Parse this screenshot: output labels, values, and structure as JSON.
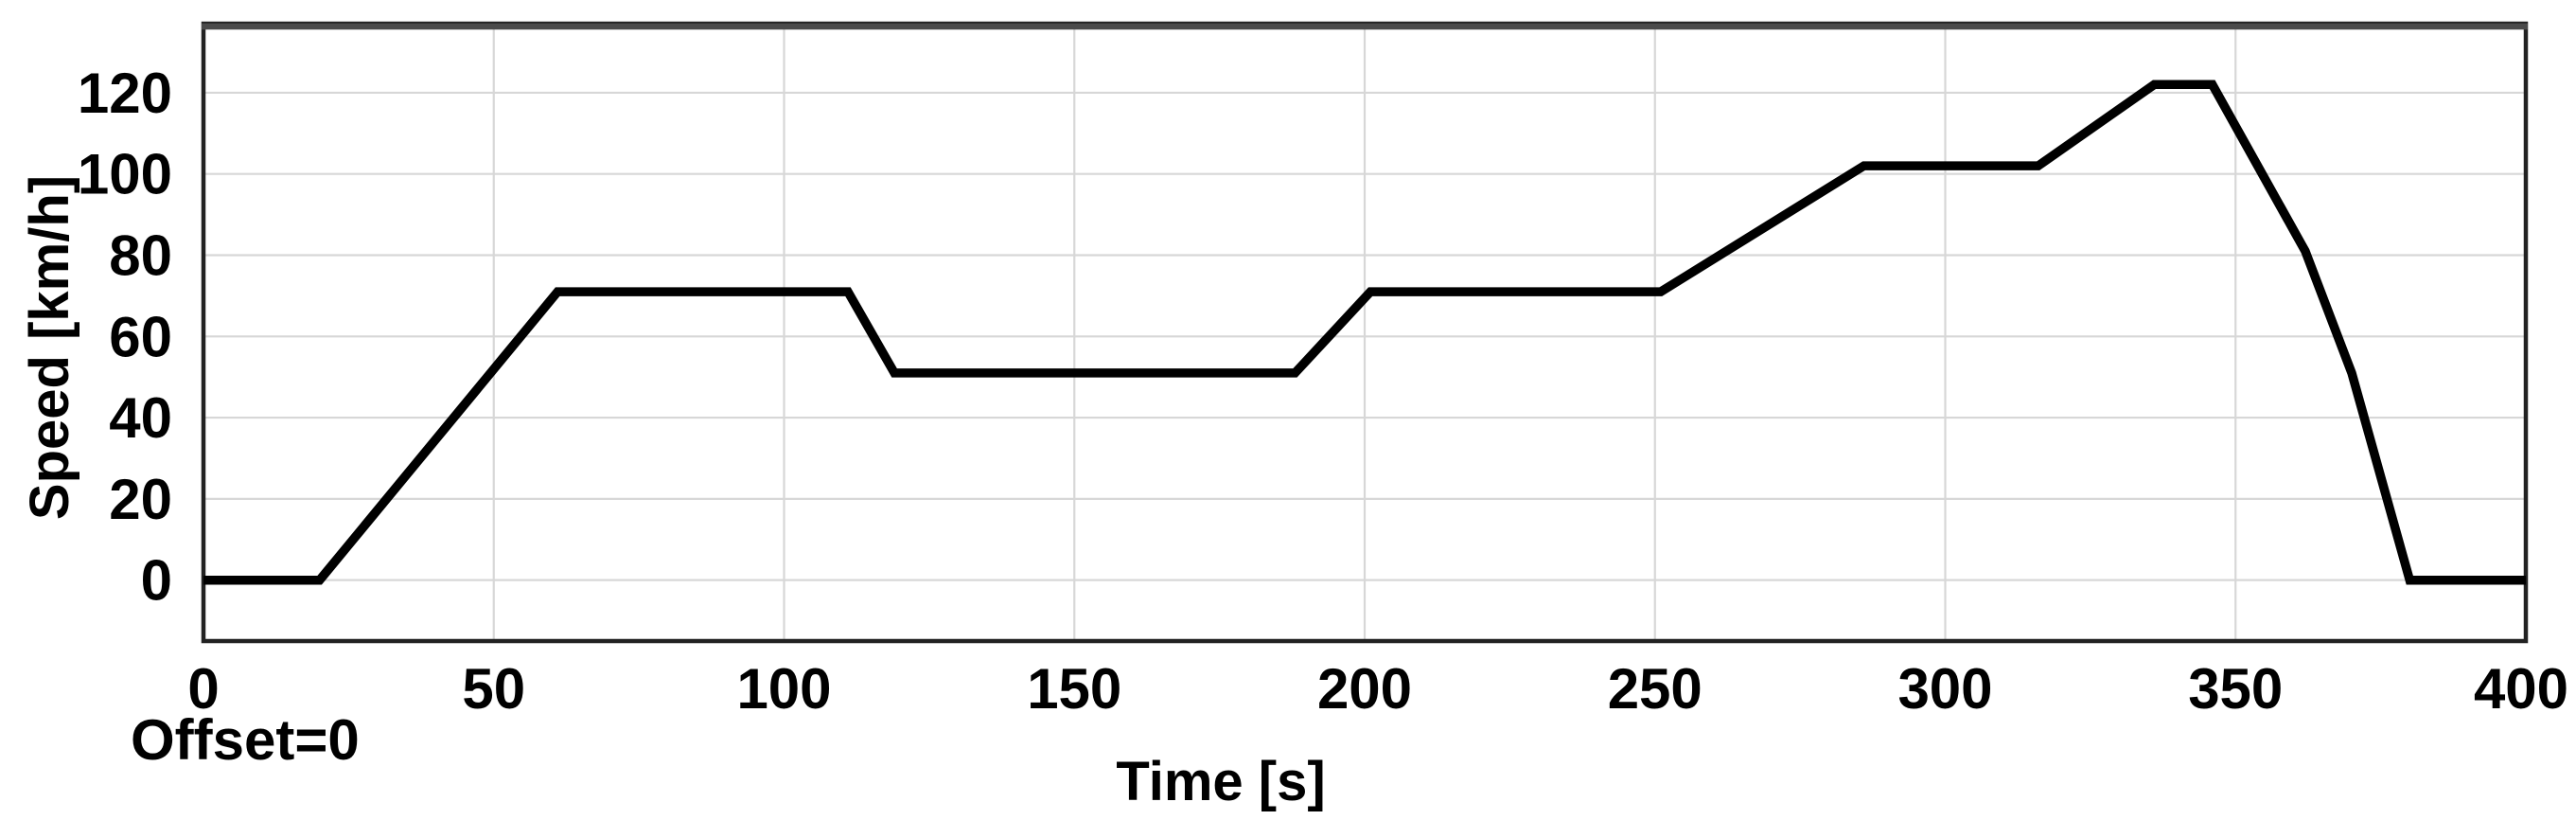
{
  "figure": {
    "background": "#ffffff",
    "offset_label": "Offset=0"
  },
  "chart_data": {
    "type": "line",
    "title": "",
    "xlabel": "Time [s]",
    "ylabel": "Speed [km/h]",
    "xlim": [
      0,
      400
    ],
    "ylim": [
      -15,
      137
    ],
    "x_ticks": [
      0,
      50,
      100,
      150,
      200,
      250,
      300,
      350,
      400
    ],
    "y_ticks": [
      0,
      20,
      40,
      60,
      80,
      100,
      120
    ],
    "grid": true,
    "legend": "none",
    "colors": {
      "line": "#000000",
      "grid": "#d7d7d7",
      "frame": "#222222",
      "frame_top": "#4a4a4a",
      "text": "#000000",
      "background": "#ffffff"
    },
    "series": [
      {
        "name": "speed-profile",
        "points": [
          [
            0,
            0
          ],
          [
            20,
            0
          ],
          [
            61,
            71
          ],
          [
            111,
            71
          ],
          [
            119,
            51
          ],
          [
            188,
            51
          ],
          [
            201,
            71
          ],
          [
            251,
            71
          ],
          [
            286,
            102
          ],
          [
            316,
            102
          ],
          [
            336,
            122
          ],
          [
            346,
            122
          ],
          [
            362,
            81
          ],
          [
            370,
            51
          ],
          [
            380,
            0
          ],
          [
            400,
            0
          ]
        ]
      }
    ],
    "annotations": [
      "Offset=0"
    ]
  }
}
